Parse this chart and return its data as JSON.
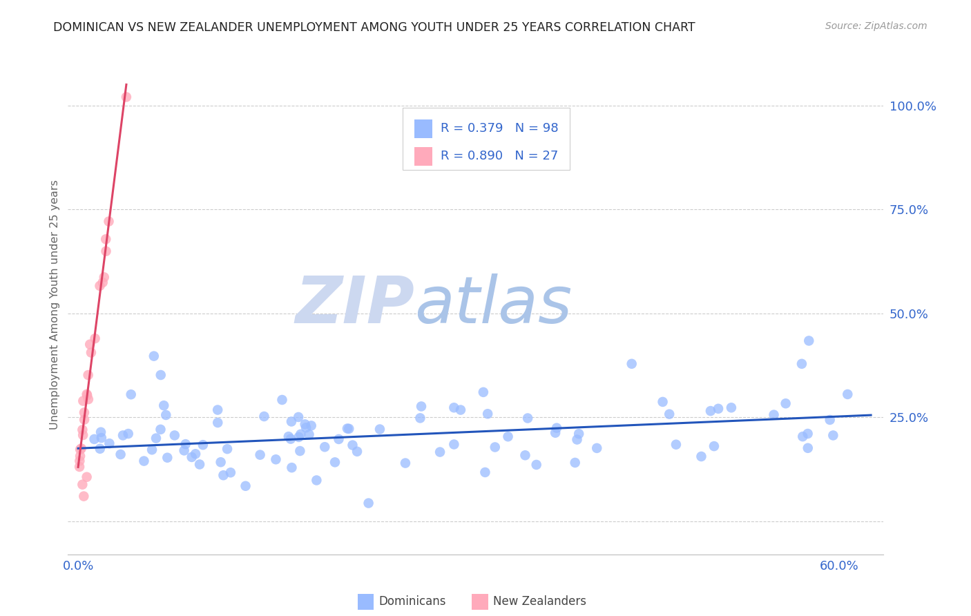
{
  "title": "DOMINICAN VS NEW ZEALANDER UNEMPLOYMENT AMONG YOUTH UNDER 25 YEARS CORRELATION CHART",
  "source": "Source: ZipAtlas.com",
  "ylabel_text": "Unemployment Among Youth under 25 years",
  "xlim": [
    -0.008,
    0.635
  ],
  "ylim": [
    -0.08,
    1.12
  ],
  "dominican_R": 0.379,
  "dominican_N": 98,
  "newzealand_R": 0.89,
  "newzealand_N": 27,
  "blue_color": "#99bbff",
  "blue_line_color": "#2255bb",
  "pink_color": "#ffaabb",
  "pink_line_color": "#dd4466",
  "text_blue": "#3366cc",
  "watermark_zip_color": "#c8d8f0",
  "watermark_atlas_color": "#a8c8e8",
  "legend_label_dominicans": "Dominicans",
  "legend_label_newzealanders": "New Zealanders",
  "dominican_trend_x0": 0.0,
  "dominican_trend_x1": 0.625,
  "dominican_trend_y0": 0.175,
  "dominican_trend_y1": 0.255,
  "newzealand_trend_x0": 0.0,
  "newzealand_trend_x1": 0.038,
  "newzealand_trend_y0": 0.13,
  "newzealand_trend_y1": 1.05,
  "background_color": "#ffffff",
  "grid_color": "#cccccc"
}
